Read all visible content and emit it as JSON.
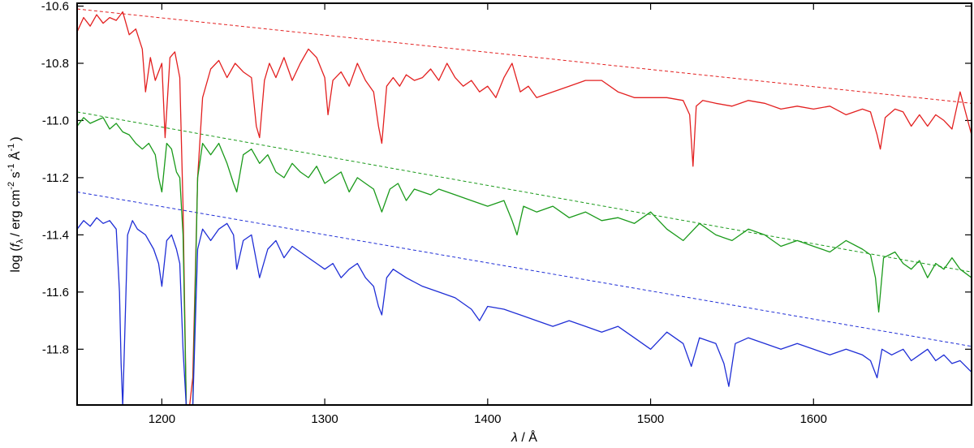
{
  "chart_data": {
    "type": "line",
    "title": "",
    "xlabel": {
      "symbol": "λ",
      "unit": "Å"
    },
    "ylabel": {
      "prefix": "log (",
      "f": "f",
      "f_sub": "λ",
      "units": "/ erg cm",
      "cm_exp": "-2",
      "s": " s",
      "s_exp": "-1",
      "A": " Å",
      "A_exp": "-1",
      "suffix": ")"
    },
    "xlim": [
      1148,
      1697
    ],
    "ylim": [
      -11.995,
      -10.59
    ],
    "xticks": [
      1200,
      1300,
      1400,
      1500,
      1600
    ],
    "xtick_labels": [
      "1200",
      "1300",
      "1400",
      "1500",
      "1600"
    ],
    "yticks": [
      -10.6,
      -10.8,
      -11.0,
      -11.2,
      -11.4,
      -11.6,
      -11.8
    ],
    "ytick_labels": [
      "-10.6",
      "-10.8",
      "-11.0",
      "-11.2",
      "-11.4",
      "-11.6",
      "-11.8"
    ],
    "grid": false,
    "series": [
      {
        "color": "#e32020",
        "continuum": [
          [
            1148,
            -10.61
          ],
          [
            1697,
            -10.94
          ]
        ],
        "x": [
          1148,
          1152,
          1156,
          1160,
          1164,
          1168,
          1172,
          1176,
          1180,
          1184,
          1188,
          1190,
          1193,
          1196,
          1200,
          1202,
          1205,
          1208,
          1211,
          1213,
          1215,
          1217,
          1219,
          1222,
          1225,
          1230,
          1235,
          1240,
          1245,
          1250,
          1255,
          1258,
          1260,
          1263,
          1266,
          1270,
          1275,
          1280,
          1285,
          1290,
          1295,
          1300,
          1302,
          1305,
          1310,
          1315,
          1320,
          1325,
          1330,
          1333,
          1335,
          1338,
          1342,
          1346,
          1350,
          1355,
          1360,
          1365,
          1370,
          1375,
          1380,
          1385,
          1390,
          1395,
          1400,
          1405,
          1410,
          1415,
          1420,
          1425,
          1430,
          1440,
          1450,
          1460,
          1470,
          1480,
          1490,
          1500,
          1510,
          1520,
          1524,
          1526,
          1528,
          1532,
          1540,
          1550,
          1560,
          1570,
          1580,
          1590,
          1600,
          1610,
          1620,
          1630,
          1635,
          1639,
          1641,
          1644,
          1650,
          1655,
          1660,
          1665,
          1670,
          1675,
          1680,
          1685,
          1690,
          1697
        ],
        "y": [
          -10.69,
          -10.64,
          -10.67,
          -10.63,
          -10.66,
          -10.64,
          -10.65,
          -10.62,
          -10.7,
          -10.68,
          -10.75,
          -10.9,
          -10.78,
          -10.86,
          -10.8,
          -11.06,
          -10.78,
          -10.76,
          -10.85,
          -11.3,
          -12.0,
          -12.0,
          -11.9,
          -11.2,
          -10.92,
          -10.82,
          -10.79,
          -10.85,
          -10.8,
          -10.83,
          -10.85,
          -11.02,
          -11.06,
          -10.86,
          -10.8,
          -10.85,
          -10.78,
          -10.86,
          -10.8,
          -10.75,
          -10.78,
          -10.85,
          -10.98,
          -10.86,
          -10.83,
          -10.88,
          -10.8,
          -10.86,
          -10.9,
          -11.02,
          -11.08,
          -10.88,
          -10.85,
          -10.88,
          -10.84,
          -10.86,
          -10.85,
          -10.82,
          -10.86,
          -10.8,
          -10.85,
          -10.88,
          -10.86,
          -10.9,
          -10.88,
          -10.92,
          -10.85,
          -10.8,
          -10.9,
          -10.88,
          -10.92,
          -10.9,
          -10.88,
          -10.86,
          -10.86,
          -10.9,
          -10.92,
          -10.92,
          -10.92,
          -10.93,
          -10.98,
          -11.16,
          -10.95,
          -10.93,
          -10.94,
          -10.95,
          -10.93,
          -10.94,
          -10.96,
          -10.95,
          -10.96,
          -10.95,
          -10.98,
          -10.96,
          -10.97,
          -11.05,
          -11.1,
          -10.99,
          -10.96,
          -10.97,
          -11.02,
          -10.98,
          -11.02,
          -10.98,
          -11.0,
          -11.03,
          -10.9,
          -11.05
        ]
      },
      {
        "color": "#1a9a1a",
        "continuum": [
          [
            1148,
            -10.97
          ],
          [
            1697,
            -11.53
          ]
        ],
        "x": [
          1148,
          1152,
          1156,
          1160,
          1164,
          1168,
          1172,
          1176,
          1180,
          1184,
          1188,
          1192,
          1196,
          1198,
          1200,
          1203,
          1206,
          1209,
          1211,
          1213,
          1215,
          1217,
          1219,
          1222,
          1225,
          1230,
          1235,
          1240,
          1244,
          1246,
          1250,
          1255,
          1260,
          1265,
          1270,
          1275,
          1280,
          1285,
          1290,
          1295,
          1300,
          1305,
          1310,
          1315,
          1320,
          1325,
          1330,
          1335,
          1340,
          1345,
          1350,
          1355,
          1360,
          1365,
          1370,
          1380,
          1390,
          1400,
          1410,
          1415,
          1418,
          1422,
          1430,
          1440,
          1450,
          1460,
          1470,
          1480,
          1490,
          1500,
          1510,
          1520,
          1530,
          1540,
          1550,
          1560,
          1570,
          1580,
          1590,
          1600,
          1610,
          1620,
          1630,
          1635,
          1638,
          1640,
          1643,
          1650,
          1655,
          1660,
          1665,
          1670,
          1675,
          1680,
          1685,
          1690,
          1697
        ],
        "y": [
          -11.02,
          -10.99,
          -11.01,
          -11.0,
          -10.99,
          -11.03,
          -11.01,
          -11.04,
          -11.05,
          -11.08,
          -11.1,
          -11.08,
          -11.12,
          -11.2,
          -11.25,
          -11.08,
          -11.1,
          -11.18,
          -11.2,
          -11.4,
          -12.0,
          -12.0,
          -12.0,
          -11.2,
          -11.08,
          -11.12,
          -11.08,
          -11.15,
          -11.22,
          -11.25,
          -11.12,
          -11.1,
          -11.15,
          -11.12,
          -11.18,
          -11.2,
          -11.15,
          -11.18,
          -11.2,
          -11.16,
          -11.22,
          -11.2,
          -11.18,
          -11.25,
          -11.2,
          -11.22,
          -11.24,
          -11.32,
          -11.24,
          -11.22,
          -11.28,
          -11.24,
          -11.25,
          -11.26,
          -11.24,
          -11.26,
          -11.28,
          -11.3,
          -11.28,
          -11.35,
          -11.4,
          -11.3,
          -11.32,
          -11.3,
          -11.34,
          -11.32,
          -11.35,
          -11.34,
          -11.36,
          -11.32,
          -11.38,
          -11.42,
          -11.36,
          -11.4,
          -11.42,
          -11.38,
          -11.4,
          -11.44,
          -11.42,
          -11.44,
          -11.46,
          -11.42,
          -11.45,
          -11.47,
          -11.55,
          -11.67,
          -11.48,
          -11.46,
          -11.5,
          -11.52,
          -11.49,
          -11.55,
          -11.5,
          -11.52,
          -11.48,
          -11.52,
          -11.55
        ]
      },
      {
        "color": "#1f2ed6",
        "continuum": [
          [
            1148,
            -11.25
          ],
          [
            1697,
            -11.79
          ]
        ],
        "x": [
          1148,
          1152,
          1156,
          1160,
          1164,
          1168,
          1172,
          1174,
          1175,
          1176,
          1177,
          1179,
          1182,
          1185,
          1190,
          1195,
          1198,
          1200,
          1203,
          1206,
          1209,
          1211,
          1213,
          1215,
          1217,
          1219,
          1222,
          1225,
          1230,
          1235,
          1240,
          1244,
          1246,
          1250,
          1255,
          1260,
          1265,
          1270,
          1275,
          1280,
          1285,
          1290,
          1295,
          1300,
          1305,
          1310,
          1315,
          1320,
          1325,
          1330,
          1333,
          1335,
          1338,
          1342,
          1350,
          1360,
          1370,
          1380,
          1390,
          1395,
          1400,
          1410,
          1420,
          1430,
          1440,
          1450,
          1460,
          1470,
          1480,
          1490,
          1500,
          1510,
          1520,
          1525,
          1530,
          1540,
          1545,
          1548,
          1552,
          1560,
          1570,
          1580,
          1590,
          1600,
          1610,
          1620,
          1630,
          1635,
          1639,
          1642,
          1648,
          1655,
          1660,
          1665,
          1670,
          1675,
          1680,
          1685,
          1690,
          1697
        ],
        "y": [
          -11.38,
          -11.35,
          -11.37,
          -11.34,
          -11.36,
          -11.35,
          -11.38,
          -11.6,
          -11.85,
          -12.0,
          -11.8,
          -11.4,
          -11.35,
          -11.38,
          -11.4,
          -11.45,
          -11.5,
          -11.58,
          -11.42,
          -11.4,
          -11.45,
          -11.5,
          -11.8,
          -12.0,
          -12.0,
          -12.0,
          -11.45,
          -11.38,
          -11.42,
          -11.38,
          -11.36,
          -11.4,
          -11.52,
          -11.42,
          -11.4,
          -11.55,
          -11.45,
          -11.42,
          -11.48,
          -11.44,
          -11.46,
          -11.48,
          -11.5,
          -11.52,
          -11.5,
          -11.55,
          -11.52,
          -11.5,
          -11.55,
          -11.58,
          -11.65,
          -11.68,
          -11.55,
          -11.52,
          -11.55,
          -11.58,
          -11.6,
          -11.62,
          -11.66,
          -11.7,
          -11.65,
          -11.66,
          -11.68,
          -11.7,
          -11.72,
          -11.7,
          -11.72,
          -11.74,
          -11.72,
          -11.76,
          -11.8,
          -11.74,
          -11.78,
          -11.86,
          -11.76,
          -11.78,
          -11.85,
          -11.93,
          -11.78,
          -11.76,
          -11.78,
          -11.8,
          -11.78,
          -11.8,
          -11.82,
          -11.8,
          -11.82,
          -11.84,
          -11.9,
          -11.8,
          -11.82,
          -11.8,
          -11.84,
          -11.82,
          -11.8,
          -11.84,
          -11.82,
          -11.85,
          -11.84,
          -11.88
        ]
      }
    ]
  }
}
